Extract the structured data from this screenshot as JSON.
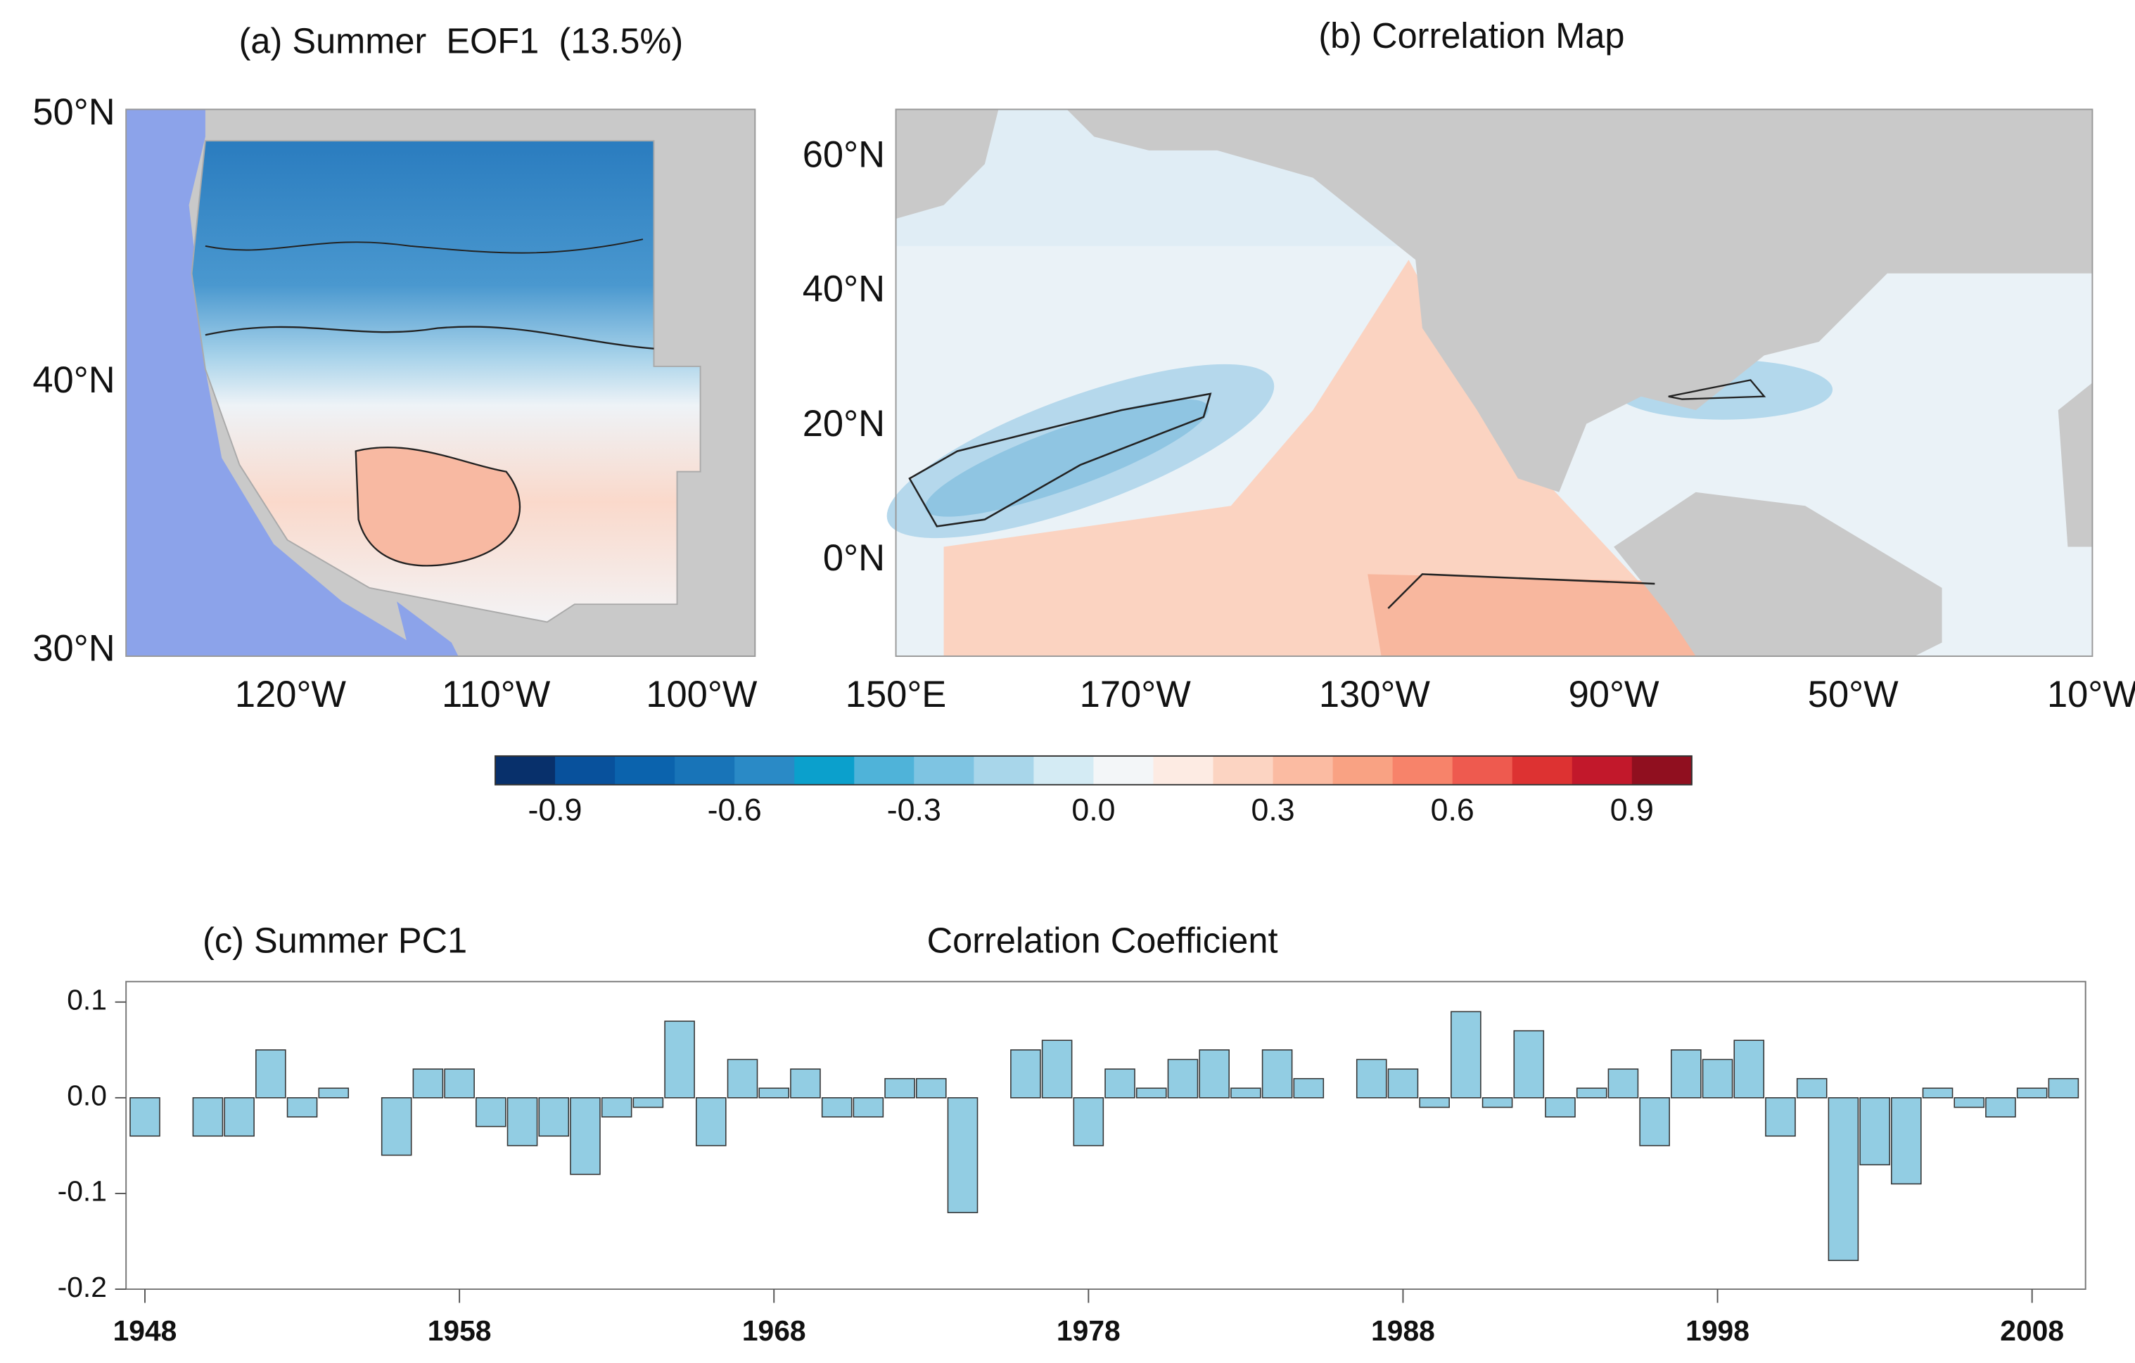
{
  "panels": [
    {
      "title": "(a) Summer  EOF1  (13.5%)",
      "xlim": [
        -128,
        -97.4
      ],
      "ylim": [
        29.8,
        50.2
      ],
      "xticks": [
        {
          "value": -120,
          "label": "120°W"
        },
        {
          "value": -110,
          "label": "110°W"
        },
        {
          "value": -100,
          "label": "100°W"
        }
      ],
      "yticks": [
        {
          "value": 50,
          "label": "50°N"
        },
        {
          "value": 40,
          "label": "40°N"
        },
        {
          "value": 30,
          "label": "30°N"
        }
      ]
    },
    {
      "title": "(b) Correlation Map",
      "xlim": [
        150,
        350
      ],
      "ylim": [
        -14.2,
        67.1
      ],
      "xticks": [
        {
          "value": 150,
          "label": "150°E"
        },
        {
          "value": 190,
          "label": "170°W"
        },
        {
          "value": 230,
          "label": "130°W"
        },
        {
          "value": 270,
          "label": "90°W"
        },
        {
          "value": 310,
          "label": "50°W"
        },
        {
          "value": 350,
          "label": "10°W"
        }
      ],
      "yticks": [
        {
          "value": 60,
          "label": "60°N"
        },
        {
          "value": 40,
          "label": "40°N"
        },
        {
          "value": 20,
          "label": "20°N"
        },
        {
          "value": 0,
          "label": "0°N"
        }
      ]
    }
  ],
  "colorbar": {
    "lim": [
      -1,
      1
    ],
    "colors": [
      "#08306b",
      "#08519c",
      "#0b63ad",
      "#1874b8",
      "#2a8ac6",
      "#0ba0cc",
      "#4fb3d9",
      "#7ec4e2",
      "#a8d6ea",
      "#d4ebf4",
      "#f3f6f8",
      "#fdebe3",
      "#fcd4c2",
      "#fbbba2",
      "#f9a283",
      "#f7836a",
      "#ee5a4f",
      "#dd3232",
      "#c2182b",
      "#900f1f"
    ],
    "ticks": [
      -0.9,
      -0.6,
      -0.3,
      {
        "value": 0,
        "label": "0.0"
      },
      0.3,
      0.6,
      0.9
    ]
  },
  "chart_data": {
    "type": "bar",
    "title": "(c) Summer PC1",
    "subtitle": "Correlation Coefficient",
    "x": [
      1948,
      1949,
      1950,
      1951,
      1952,
      1953,
      1954,
      1955,
      1956,
      1957,
      1958,
      1959,
      1960,
      1961,
      1962,
      1963,
      1964,
      1965,
      1966,
      1967,
      1968,
      1969,
      1970,
      1971,
      1972,
      1973,
      1974,
      1975,
      1976,
      1977,
      1978,
      1979,
      1980,
      1981,
      1982,
      1983,
      1984,
      1985,
      1986,
      1987,
      1988,
      1989,
      1990,
      1991,
      1992,
      1993,
      1994,
      1995,
      1996,
      1997,
      1998,
      1999,
      2000,
      2001,
      2002,
      2003,
      2004,
      2005,
      2006,
      2007,
      2008,
      2009
    ],
    "values": [
      -0.04,
      0,
      -0.04,
      -0.04,
      0.05,
      -0.02,
      0.01,
      0,
      -0.06,
      0.03,
      0.03,
      -0.03,
      -0.05,
      -0.04,
      -0.08,
      -0.02,
      -0.01,
      0.08,
      -0.05,
      0.04,
      0.01,
      0.03,
      -0.02,
      -0.02,
      0.02,
      0.02,
      -0.12,
      0,
      0.05,
      0.06,
      -0.05,
      0.03,
      0.01,
      0.04,
      0.05,
      0.01,
      0.05,
      0.02,
      0,
      0.04,
      0.03,
      -0.01,
      0.09,
      -0.01,
      0.07,
      -0.02,
      0.01,
      0.03,
      -0.05,
      0.05,
      0.04,
      0.06,
      -0.04,
      0.02,
      -0.17,
      -0.07,
      -0.09,
      0.01,
      -0.01,
      -0.02,
      0.01,
      0.02
    ],
    "color": "#92cde3",
    "xlim": [
      1947.4,
      2009.7
    ],
    "xticks": [
      1948,
      1958,
      1968,
      1978,
      1988,
      1998,
      2008
    ],
    "ylim": [
      -0.2,
      0.1214
    ],
    "yticks": [
      0.1,
      {
        "value": 0,
        "label": "0.0"
      },
      -0.1,
      -0.2
    ]
  }
}
